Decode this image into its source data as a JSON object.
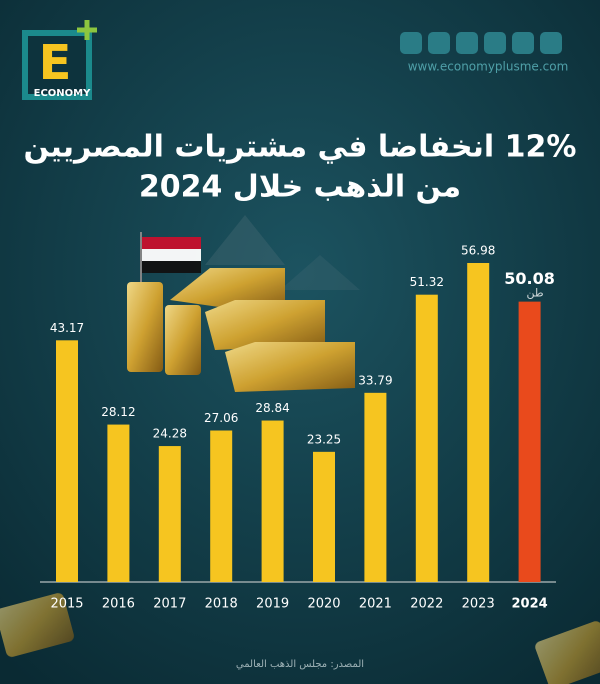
{
  "brand": {
    "logo_letter": "E",
    "name": "ECONOMY",
    "website": "www.economyplusme.com"
  },
  "chart_data": {
    "type": "bar",
    "title": "12% انخفاضا في مشتريات المصريين",
    "subtitle": "من الذهب خلال 2024",
    "categories": [
      "2015",
      "2016",
      "2017",
      "2018",
      "2019",
      "2020",
      "2021",
      "2022",
      "2023",
      "2024"
    ],
    "values": [
      43.17,
      28.12,
      24.28,
      27.06,
      28.84,
      23.25,
      33.79,
      51.32,
      56.98,
      50.08
    ],
    "colors": [
      "#f6c520",
      "#f6c520",
      "#f6c520",
      "#f6c520",
      "#f6c520",
      "#f6c520",
      "#f6c520",
      "#f6c520",
      "#f6c520",
      "#e94a1c"
    ],
    "unit": "طن",
    "source": "المصدر: مجلس الذهب العالمي"
  }
}
